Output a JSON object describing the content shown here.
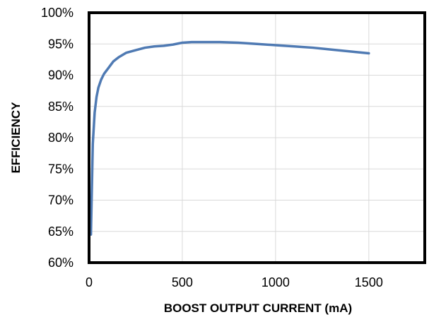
{
  "chart_data": {
    "type": "line",
    "title": "",
    "xlabel": "BOOST OUTPUT CURRENT (mA)",
    "ylabel": "EFFICIENCY",
    "xlim": [
      0,
      1800
    ],
    "ylim": [
      60,
      100
    ],
    "xticks": [
      0,
      500,
      1000,
      1500
    ],
    "xtick_labels": [
      "0",
      "500",
      "1000",
      "1500"
    ],
    "yticks": [
      60,
      65,
      70,
      75,
      80,
      85,
      90,
      95,
      100
    ],
    "ytick_labels": [
      "60%",
      "65%",
      "70%",
      "75%",
      "80%",
      "85%",
      "90%",
      "95%",
      "100%"
    ],
    "grid": true,
    "legend": "none",
    "series_color": "#4f7ab3",
    "series": [
      {
        "x": [
          10,
          20,
          30,
          40,
          50,
          65,
          80,
          100,
          130,
          160,
          200,
          250,
          300,
          350,
          400,
          450,
          500,
          550,
          600,
          700,
          800,
          900,
          1000,
          1100,
          1200,
          1300,
          1400,
          1500
        ],
        "values": [
          64.5,
          79.0,
          84.0,
          86.5,
          88.0,
          89.3,
          90.2,
          91.0,
          92.2,
          92.9,
          93.6,
          94.0,
          94.4,
          94.6,
          94.7,
          94.9,
          95.2,
          95.3,
          95.3,
          95.3,
          95.2,
          95.0,
          94.8,
          94.6,
          94.4,
          94.1,
          93.8,
          93.5
        ]
      }
    ]
  }
}
